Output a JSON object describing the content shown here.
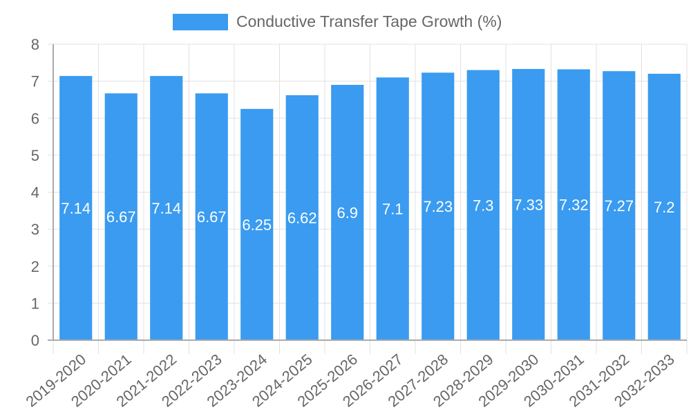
{
  "chart_data": {
    "type": "bar",
    "title": "",
    "legend": [
      {
        "label": "Conductive Transfer Tape Growth (%)",
        "color": "#3a9bf0"
      }
    ],
    "legend_position": "top",
    "categories": [
      "2019-2020",
      "2020-2021",
      "2021-2022",
      "2022-2023",
      "2023-2024",
      "2024-2025",
      "2025-2026",
      "2026-2027",
      "2027-2028",
      "2028-2029",
      "2029-2030",
      "2030-2031",
      "2031-2032",
      "2032-2033"
    ],
    "series": [
      {
        "name": "Conductive Transfer Tape Growth (%)",
        "values": [
          7.14,
          6.67,
          7.14,
          6.67,
          6.25,
          6.62,
          6.9,
          7.1,
          7.23,
          7.3,
          7.33,
          7.32,
          7.27,
          7.2
        ],
        "color": "#3a9bf0"
      }
    ],
    "data_labels": [
      "7.14",
      "6.67",
      "7.14",
      "6.67",
      "6.25",
      "6.62",
      "6.9",
      "7.1",
      "7.23",
      "7.3",
      "7.33",
      "7.32",
      "7.27",
      "7.2"
    ],
    "xlabel": "",
    "ylabel": "",
    "ylim": [
      0,
      8
    ],
    "yticks": [
      0,
      1,
      2,
      3,
      4,
      5,
      6,
      7,
      8
    ],
    "grid": true
  },
  "legend": {
    "label": "Conductive Transfer Tape Growth (%)"
  }
}
